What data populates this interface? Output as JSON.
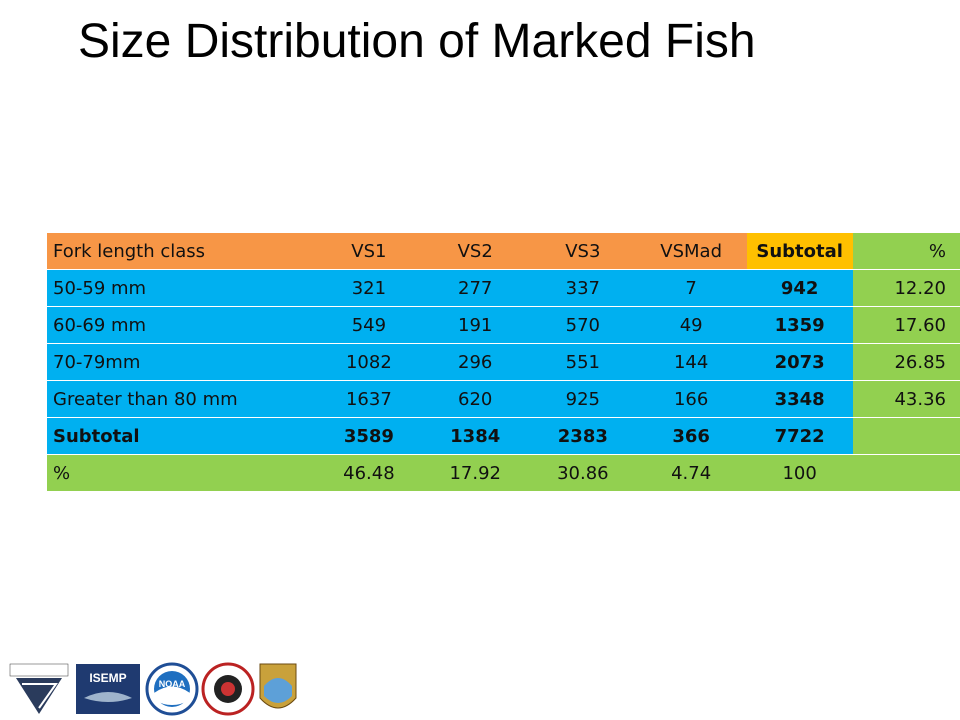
{
  "header": {
    "title": "Size Distribution of Marked Fish"
  },
  "table": {
    "columns": [
      "Fork length class",
      "VS1",
      "VS2",
      "VS3",
      "VSMad",
      "Subtotal",
      "%"
    ],
    "rows": [
      [
        "50-59 mm",
        "321",
        "277",
        "337",
        "7",
        "942",
        "12.20"
      ],
      [
        "60-69 mm",
        "549",
        "191",
        "570",
        "49",
        "1359",
        "17.60"
      ],
      [
        "70-79mm",
        "1082",
        "296",
        "551",
        "144",
        "2073",
        "26.85"
      ],
      [
        "Greater than 80 mm",
        "1637",
        "620",
        "925",
        "166",
        "3348",
        "43.36"
      ],
      [
        "Subtotal",
        "3589",
        "1384",
        "2383",
        "366",
        "7722"
      ],
      [
        "%",
        "46.48",
        "17.92",
        "30.86",
        "4.74",
        "100"
      ]
    ]
  },
  "logos": [
    "ISEMP",
    "NOAA"
  ]
}
